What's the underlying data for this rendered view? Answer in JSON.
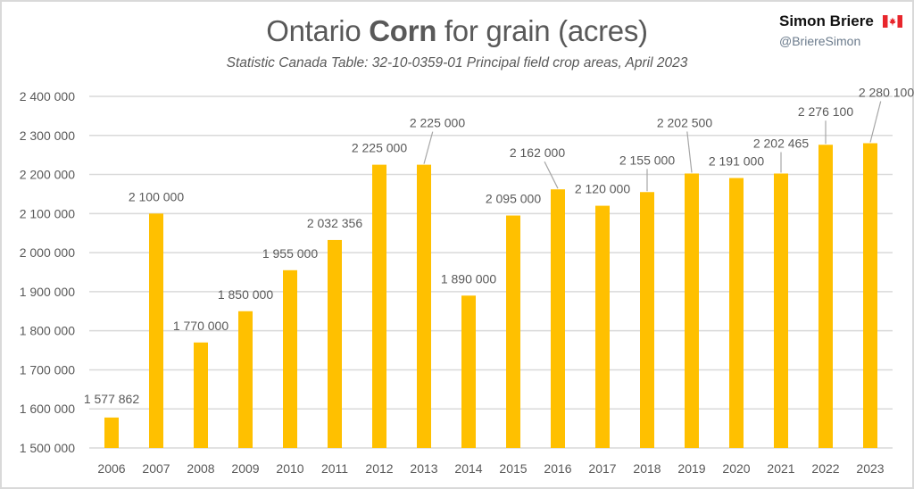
{
  "brand": {
    "name": "Simon Briere",
    "handle": "@BriereSimon",
    "flag_icon": "canada-flag-icon"
  },
  "colors": {
    "bar": "#FFC000",
    "grid": "#d9d9d9",
    "text": "#595959",
    "leader": "#a6a6a6",
    "flag_red": "#e8262c"
  },
  "chart_data": {
    "type": "bar",
    "title_parts": [
      "Ontario ",
      "Corn",
      " for grain (acres)"
    ],
    "title": "Ontario Corn for grain (acres)",
    "subtitle": "Statistic Canada Table: 32-10-0359-01 Principal field crop areas, April 2023",
    "xlabel": "",
    "ylabel": "",
    "ylim": [
      1500000,
      2400000
    ],
    "grid": true,
    "legend": "none",
    "yticks": [
      1500000,
      1600000,
      1700000,
      1800000,
      1900000,
      2000000,
      2100000,
      2200000,
      2300000,
      2400000
    ],
    "ytick_labels": [
      "1 500 000",
      "1 600 000",
      "1 700 000",
      "1 800 000",
      "1 900 000",
      "2 000 000",
      "2 100 000",
      "2 200 000",
      "2 300 000",
      "2 400 000"
    ],
    "categories": [
      "2006",
      "2007",
      "2008",
      "2009",
      "2010",
      "2011",
      "2012",
      "2013",
      "2014",
      "2015",
      "2016",
      "2017",
      "2018",
      "2019",
      "2020",
      "2021",
      "2022",
      "2023"
    ],
    "values": [
      1577862,
      2100000,
      1770000,
      1850000,
      1955000,
      2032356,
      2225000,
      2225000,
      1890000,
      2095000,
      2162000,
      2120000,
      2155000,
      2202500,
      2191000,
      2202465,
      2276100,
      2280100
    ],
    "data_labels": [
      "1 577 862",
      "2 100 000",
      "1 770 000",
      "1 850 000",
      "1 955 000",
      "2 032 356",
      "2 225 000",
      "2 225 000",
      "1 890 000",
      "2 095 000",
      "2 162 000",
      "2 120 000",
      "2 155 000",
      "2 202 500",
      "2 191 000",
      "2 202 465",
      "2 276 100",
      "2 280 100"
    ]
  }
}
